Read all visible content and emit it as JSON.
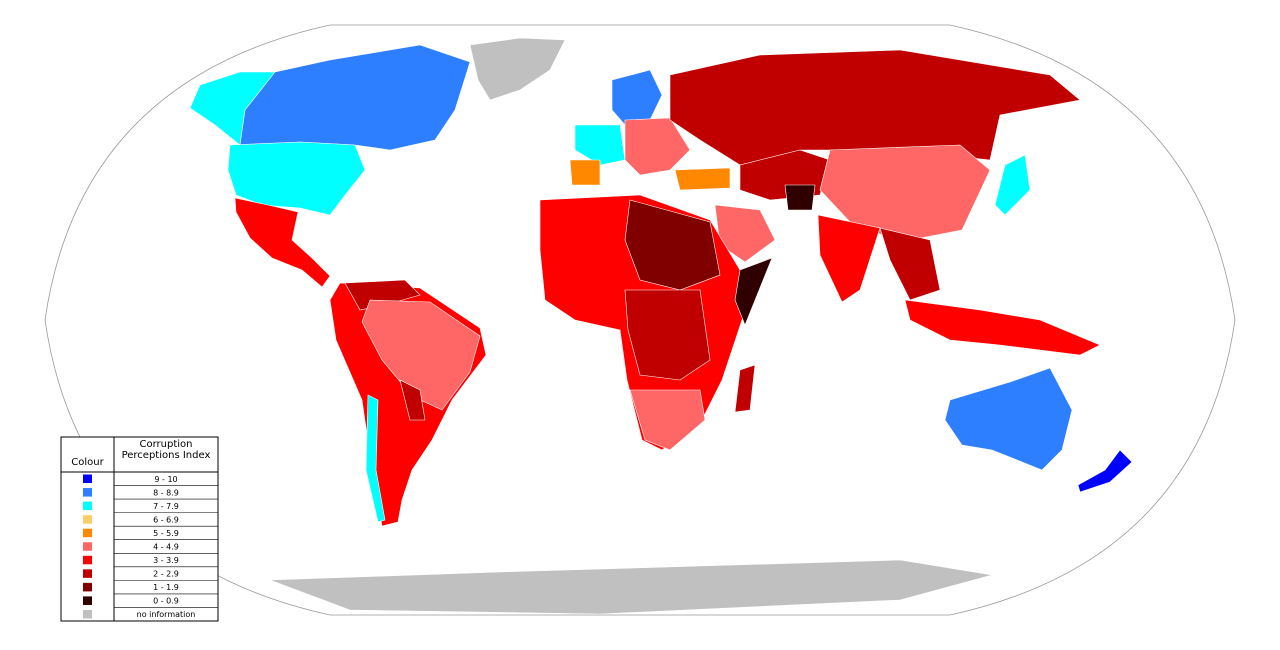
{
  "legend": {
    "headers": [
      "Colour",
      "Corruption Perceptions Index"
    ],
    "items": [
      {
        "label": "9 - 10",
        "color": "#0000ff"
      },
      {
        "label": "8 - 8.9",
        "color": "#2e7fff"
      },
      {
        "label": "7 - 7.9",
        "color": "#00ffff"
      },
      {
        "label": "6 - 6.9",
        "color": "#ffcc66"
      },
      {
        "label": "5 - 5.9",
        "color": "#ff8800"
      },
      {
        "label": "4 - 4.9",
        "color": "#ff6666"
      },
      {
        "label": "3 - 3.9",
        "color": "#ff0000"
      },
      {
        "label": "2 - 2.9",
        "color": "#c00000"
      },
      {
        "label": "1 - 1.9",
        "color": "#800000"
      },
      {
        "label": "0 - 0.9",
        "color": "#300000"
      },
      {
        "label": "no information",
        "color": "#c0c0c0"
      }
    ]
  }
}
